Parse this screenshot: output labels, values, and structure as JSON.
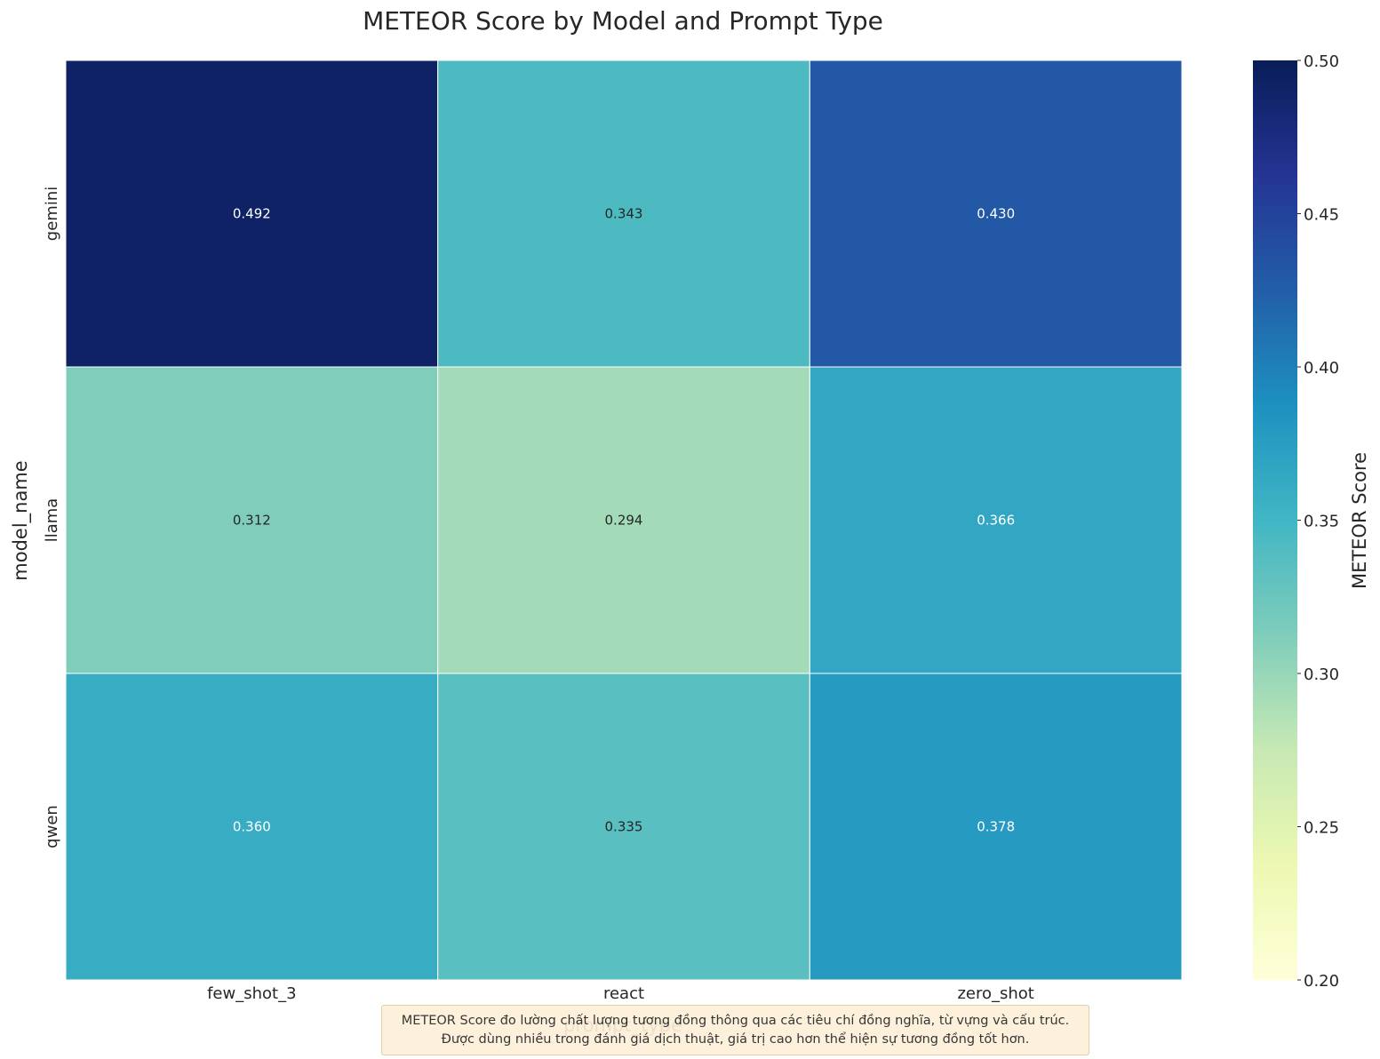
{
  "chart_data": {
    "type": "heatmap",
    "title": "METEOR Score by Model and Prompt Type",
    "xlabel": "prompt_type",
    "ylabel": "model_name",
    "x_categories": [
      "few_shot_3",
      "react",
      "zero_shot"
    ],
    "y_categories": [
      "gemini",
      "llama",
      "qwen"
    ],
    "values": [
      [
        0.492,
        0.343,
        0.43
      ],
      [
        0.312,
        0.294,
        0.366
      ],
      [
        0.36,
        0.335,
        0.378
      ]
    ],
    "value_labels": [
      [
        "0.492",
        "0.343",
        "0.430"
      ],
      [
        "0.312",
        "0.294",
        "0.366"
      ],
      [
        "0.360",
        "0.335",
        "0.378"
      ]
    ],
    "colormap": "YlGnBu",
    "colorbar": {
      "label": "METEOR Score",
      "range": [
        0.2,
        0.5
      ],
      "ticks": [
        0.2,
        0.25,
        0.3,
        0.35,
        0.4,
        0.45,
        0.5
      ],
      "tick_labels": [
        "0.20",
        "0.25",
        "0.30",
        "0.35",
        "0.40",
        "0.45",
        "0.50"
      ]
    },
    "colormap_stops": [
      "#ffffd9",
      "#edf8b1",
      "#c7e9b4",
      "#7fcdbb",
      "#41b6c4",
      "#1d91c0",
      "#225ea8",
      "#253494",
      "#081d58"
    ]
  },
  "note": {
    "line1": "METEOR Score đo lường chất lượng tương đồng thông qua các tiêu chí đồng nghĩa, từ vựng và cấu trúc.",
    "line2": "Được dùng nhiều trong đánh giá dịch thuật, giá trị cao hơn thể hiện sự tương đồng tốt hơn."
  }
}
